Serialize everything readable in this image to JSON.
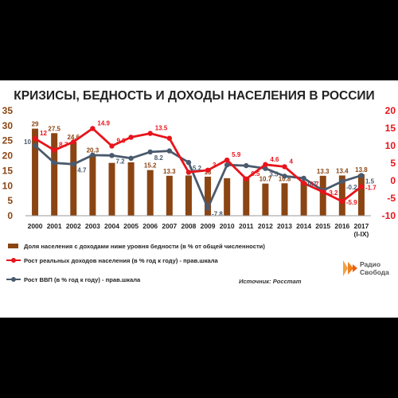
{
  "chart_data": {
    "type": "bar",
    "title": "КРИЗИСЫ, БЕДНОСТЬ И ДОХОДЫ НАСЕЛЕНИЯ В РОССИИ",
    "categories": [
      "2000",
      "2001",
      "2002",
      "2003",
      "2004",
      "2005",
      "2006",
      "2007",
      "2008",
      "2009",
      "2010",
      "2011",
      "2012",
      "2013",
      "2014",
      "2015",
      "2016",
      "2017\n(I-IX)"
    ],
    "left_axis": {
      "ylim": [
        0,
        35
      ],
      "ticks": [
        0,
        5,
        10,
        15,
        20,
        25,
        30,
        35
      ],
      "color": "#8B4513"
    },
    "right_axis": {
      "ylim": [
        -10,
        20
      ],
      "ticks": [
        -10,
        -5,
        0,
        5,
        10,
        15,
        20
      ],
      "color": "#e8141b"
    },
    "series": [
      {
        "name": "Доля населения с доходами ниже уровня бедности (в % от общей численности)",
        "type": "bar",
        "axis": "left",
        "color": "#8B4513",
        "values": [
          29,
          27.5,
          24.6,
          20.3,
          17.6,
          17.8,
          15.2,
          13.3,
          13.4,
          13,
          12.5,
          12.7,
          10.7,
          10.8,
          11.2,
          13.3,
          13.4,
          13.8
        ],
        "labels": [
          "29",
          "27.5",
          "24.6",
          "20.3",
          "",
          "",
          "15.2",
          "13.3",
          "",
          "13",
          "",
          "",
          "10.7",
          "10.8",
          "",
          "13.3",
          "13.4",
          "13.8"
        ]
      },
      {
        "name": "Рост реальных доходов населения (в % год к году) - прав.шкала",
        "type": "line",
        "axis": "right",
        "color": "#e8141b",
        "values": [
          12,
          8.7,
          11.1,
          14.9,
          9.9,
          12.4,
          13.5,
          12.1,
          2.4,
          3,
          5.9,
          0.5,
          4.6,
          4,
          -0.7,
          -3.2,
          -5.9,
          -1.7
        ],
        "labels": [
          "12",
          "8.7",
          "",
          "14.9",
          "9.9",
          "",
          "13.5",
          "",
          "",
          "3",
          "5.9",
          "0.5",
          "4.6",
          "4",
          "-0.7",
          "-3.2",
          "-5.9",
          "-1.7"
        ]
      },
      {
        "name": "Рост ВВП (в % год к году) - прав.шкала",
        "type": "line",
        "axis": "right",
        "color": "#4a5a6e",
        "values": [
          10,
          5.1,
          4.7,
          7.3,
          7.2,
          6.4,
          8.2,
          8.5,
          5.2,
          -7.8,
          4.5,
          4.3,
          3.5,
          1.3,
          0.7,
          -2.8,
          -0.2,
          1.5
        ],
        "labels": [
          "10",
          "",
          "4.7",
          "",
          "7.2",
          "",
          "8.2",
          "",
          "5.2",
          "-7.8",
          "",
          "",
          "3.5",
          "",
          "0.7",
          "",
          "-0.2",
          "1.5"
        ]
      }
    ],
    "grid": false,
    "legend_position": "bottom-left",
    "source": "Источник: Росстат"
  },
  "logo": {
    "line1": "Радио",
    "line2": "Свобода"
  }
}
